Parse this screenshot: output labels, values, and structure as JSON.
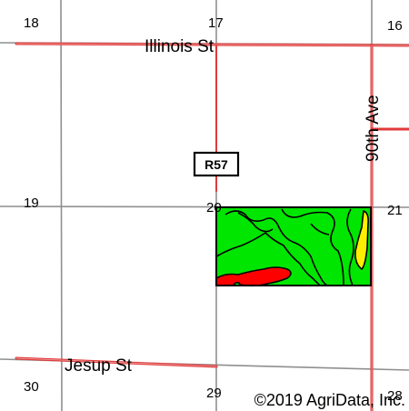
{
  "map": {
    "section_numbers": {
      "s18": "18",
      "s17": "17",
      "s16": "16",
      "s19": "19",
      "s20": "20",
      "s21": "21",
      "s30": "30",
      "s29": "29",
      "s28": "28"
    },
    "roads": {
      "illinois_st": "Illinois St",
      "ninetieth_ave": "90th Ave",
      "jesup_st": "Jesup St"
    },
    "route_shield": "R57",
    "copyright": "©2019 AgriData, Inc.",
    "colors": {
      "road": "#e03a3a",
      "grid_line": "#8f8f8f",
      "field_green": "#00e600",
      "field_red": "#ff0000",
      "field_yellow": "#ffee00",
      "outline": "#000000"
    }
  }
}
